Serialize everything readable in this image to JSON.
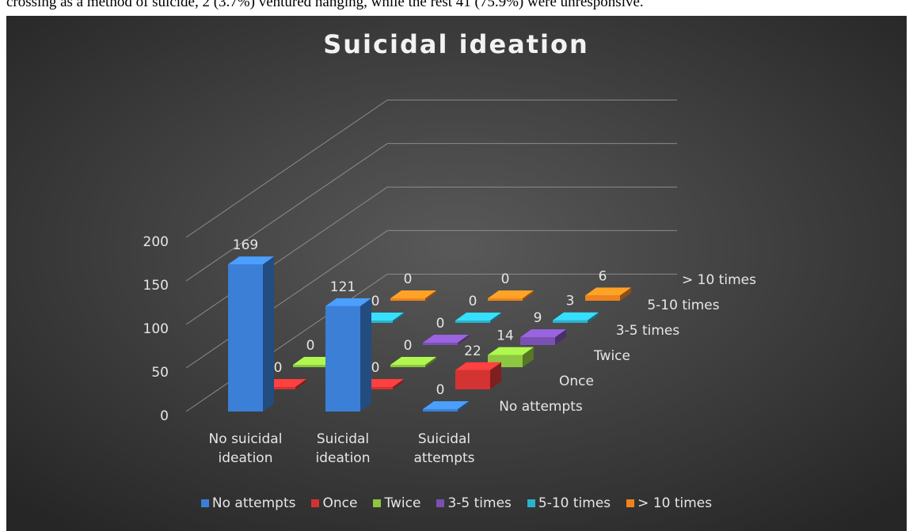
{
  "document_text": "crossing as a method of suicide, 2 (3.7%) ventured hanging, while the rest 41 (75.9%) were unresponsive.",
  "chart_data": {
    "type": "bar3d",
    "title": "Suicidal ideation",
    "categories": [
      "No suicidal ideation",
      "Suicidal ideation",
      "Suicidal attempts"
    ],
    "series": [
      {
        "name": "No attempts",
        "color": "#3b7fd6",
        "values": [
          169,
          121,
          0
        ]
      },
      {
        "name": "Once",
        "color": "#d43333",
        "values": [
          0,
          0,
          22
        ]
      },
      {
        "name": "Twice",
        "color": "#8dc63f",
        "values": [
          0,
          0,
          14
        ]
      },
      {
        "name": "3-5 times",
        "color": "#7b50b3",
        "values": [
          0,
          0,
          9
        ]
      },
      {
        "name": "5-10 times",
        "color": "#2bb2cb",
        "values": [
          0,
          0,
          3
        ]
      },
      {
        "name": "> 10 times",
        "color": "#f0821e",
        "values": [
          0,
          0,
          6
        ]
      }
    ],
    "ylim": [
      0,
      200
    ],
    "yticks": [
      0,
      50,
      100,
      150,
      200
    ],
    "grid": true,
    "legend": "bottom"
  }
}
